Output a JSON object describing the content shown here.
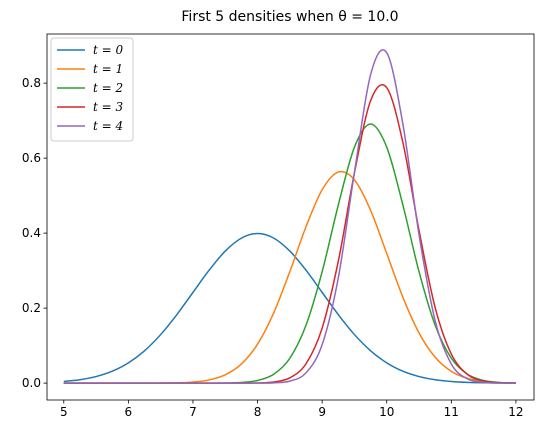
{
  "chart_data": {
    "type": "line",
    "title": "First 5 densities when θ = 10.0",
    "x": [
      5,
      5.25,
      5.5,
      5.75,
      6,
      6.25,
      6.5,
      6.75,
      7,
      7.25,
      7.5,
      7.75,
      8,
      8.25,
      8.5,
      8.75,
      9,
      9.25,
      9.5,
      9.75,
      10,
      10.25,
      10.5,
      10.75,
      11,
      11.25,
      11.5,
      11.75,
      12
    ],
    "series": [
      {
        "name": "t = 0",
        "color": "#1f77b4",
        "values": [
          0.0044,
          0.0091,
          0.0175,
          0.0317,
          0.054,
          0.0863,
          0.1295,
          0.1826,
          0.242,
          0.3011,
          0.3521,
          0.3867,
          0.3989,
          0.3867,
          0.3521,
          0.3011,
          0.242,
          0.1826,
          0.1295,
          0.0863,
          0.054,
          0.0317,
          0.0175,
          0.0091,
          0.0044,
          0.002,
          0.0009,
          0.0004,
          0.0001
        ]
      },
      {
        "name": "t = 1",
        "color": "#ff7f0e",
        "values": [
          0,
          0,
          0,
          0,
          0,
          0.0001,
          0.0002,
          0.0009,
          0.0028,
          0.0085,
          0.0221,
          0.0511,
          0.1041,
          0.1873,
          0.2975,
          0.417,
          0.5156,
          0.5628,
          0.5421,
          0.4608,
          0.3456,
          0.2288,
          0.1337,
          0.0689,
          0.0314,
          0.0126,
          0.0045,
          0.0014,
          0.0004
        ]
      },
      {
        "name": "t = 2",
        "color": "#2ca02c",
        "values": [
          0,
          0,
          0,
          0,
          0,
          0,
          0,
          0,
          0,
          0.0001,
          0.0003,
          0.0017,
          0.007,
          0.0236,
          0.0663,
          0.1542,
          0.2971,
          0.4749,
          0.6292,
          0.691,
          0.6292,
          0.4749,
          0.2971,
          0.1542,
          0.0663,
          0.0236,
          0.007,
          0.0017,
          0.0003
        ]
      },
      {
        "name": "t = 3",
        "color": "#d62728",
        "values": [
          0,
          0,
          0,
          0,
          0,
          0,
          0,
          0,
          0,
          0,
          0,
          0,
          0.0005,
          0.003,
          0.0141,
          0.0516,
          0.1468,
          0.3251,
          0.5606,
          0.7531,
          0.7878,
          0.6417,
          0.4072,
          0.2011,
          0.0774,
          0.0232,
          0.0054,
          0.001,
          0.0001
        ]
      },
      {
        "name": "t = 4",
        "color": "#9467bd",
        "values": [
          0,
          0,
          0,
          0,
          0,
          0,
          0,
          0,
          0,
          0,
          0,
          0,
          0,
          0.0008,
          0.0054,
          0.0275,
          0.1027,
          0.2807,
          0.562,
          0.8226,
          0.8811,
          0.6905,
          0.396,
          0.1661,
          0.0509,
          0.0114,
          0.0019,
          0.0002,
          0
        ]
      }
    ],
    "xlim": [
      4.74,
      12.28
    ],
    "ylim": [
      -0.045,
      0.931
    ],
    "xticks": [
      5,
      6,
      7,
      8,
      9,
      10,
      11,
      12
    ],
    "yticks": [
      {
        "value": 0,
        "label": "0.0"
      },
      {
        "value": 0.2,
        "label": "0.2"
      },
      {
        "value": 0.4,
        "label": "0.4"
      },
      {
        "value": 0.6,
        "label": "0.6"
      },
      {
        "value": 0.8,
        "label": "0.8"
      }
    ],
    "legend": "upper left"
  }
}
